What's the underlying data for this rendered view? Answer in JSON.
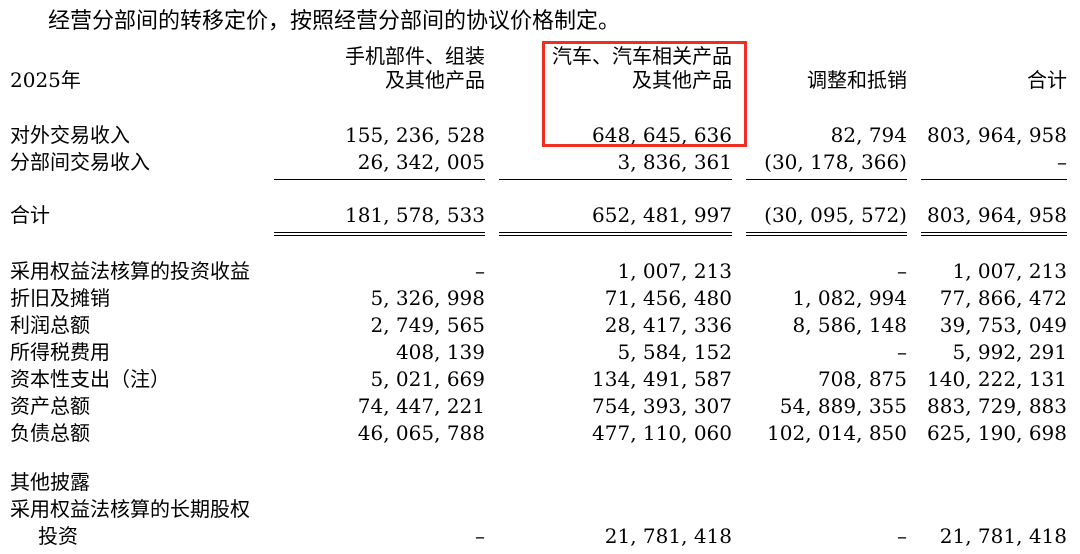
{
  "intro": "经营分部间的转移定价，按照经营分部间的协议价格制定。",
  "table": {
    "year_label": "2025年",
    "highlight_color": "#ee2e20",
    "columns": [
      {
        "line1": "手机部件、组装",
        "line2": "及其他产品",
        "highlighted": false
      },
      {
        "line1": "汽车、汽车相关产品",
        "line2": "及其他产品",
        "highlighted": true
      },
      {
        "line1": "",
        "line2": "调整和抵销",
        "highlighted": false
      },
      {
        "line1": "",
        "line2": "合计",
        "highlighted": false
      }
    ],
    "rows": [
      {
        "label": "对外交易收入",
        "values": [
          "155, 236, 528",
          "648, 645, 636",
          "82, 794",
          "803, 964, 958"
        ]
      },
      {
        "label": "分部间交易收入",
        "values": [
          "26, 342, 005",
          "3, 836, 361",
          "(30, 178, 366)",
          "–"
        ],
        "rule": "single"
      },
      {
        "type": "spacer"
      },
      {
        "label": "合计",
        "values": [
          "181, 578, 533",
          "652, 481, 997",
          "(30, 095, 572)",
          "803, 964, 958"
        ],
        "rule": "double"
      },
      {
        "type": "spacer"
      },
      {
        "label": "采用权益法核算的投资收益",
        "values": [
          "–",
          "1, 007, 213",
          "–",
          "1, 007, 213"
        ]
      },
      {
        "label": "折旧及摊销",
        "values": [
          "5, 326, 998",
          "71, 456, 480",
          "1, 082, 994",
          "77, 866, 472"
        ]
      },
      {
        "label": "利润总额",
        "values": [
          "2, 749, 565",
          "28, 417, 336",
          "8, 586, 148",
          "39, 753, 049"
        ]
      },
      {
        "label": "所得税费用",
        "values": [
          "408, 139",
          "5, 584, 152",
          "–",
          "5, 992, 291"
        ]
      },
      {
        "label": "资本性支出（注）",
        "values": [
          "5, 021, 669",
          "134, 491, 587",
          "708, 875",
          "140, 222, 131"
        ]
      },
      {
        "label": "资产总额",
        "values": [
          "74, 447, 221",
          "754, 393, 307",
          "54, 889, 355",
          "883, 729, 883"
        ]
      },
      {
        "label": "负债总额",
        "values": [
          "46, 065, 788",
          "477, 110, 060",
          "102, 014, 850",
          "625, 190, 698"
        ]
      },
      {
        "type": "spacer"
      },
      {
        "label": "其他披露",
        "values": [
          "",
          "",
          "",
          ""
        ]
      },
      {
        "label": "采用权益法核算的长期股权",
        "values": [
          "",
          "",
          "",
          ""
        ]
      },
      {
        "label": "投资",
        "values": [
          "–",
          "21, 781, 418",
          "–",
          "21, 781, 418"
        ],
        "indent": true
      }
    ]
  }
}
